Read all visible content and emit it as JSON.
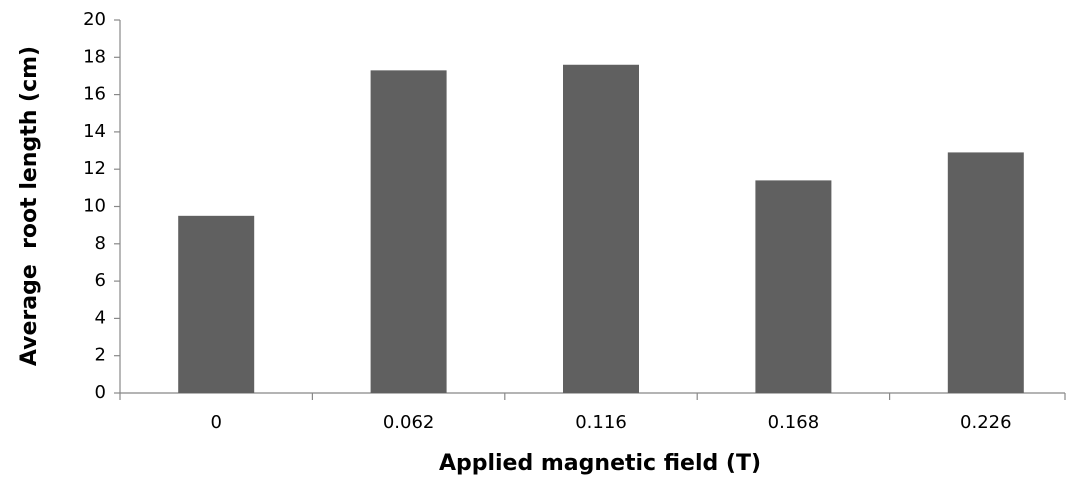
{
  "chart_data": {
    "type": "bar",
    "x_label": "Applied magnetic field (T)",
    "y_label": "Average  root length (cm)",
    "categories": [
      "0",
      "0.062",
      "0.116",
      "0.168",
      "0.226"
    ],
    "values": [
      9.5,
      17.3,
      17.6,
      11.4,
      12.9
    ],
    "color": "#606060",
    "ylim": [
      0,
      20
    ],
    "yticks": [
      0,
      2,
      4,
      6,
      8,
      10,
      12,
      14,
      16,
      18,
      20
    ],
    "grid": false
  }
}
